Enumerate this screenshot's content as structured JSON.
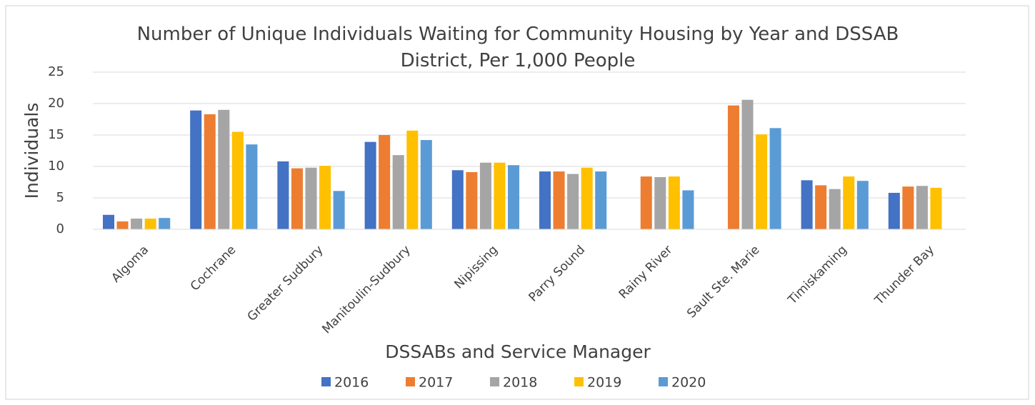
{
  "chart_data": {
    "type": "bar",
    "title": "Number of Unique Individuals Waiting for Community Housing by Year and DSSAB District, Per 1,000 People",
    "x_label": "DSSABs and Service Manager",
    "y_label": "Individuals",
    "categories": [
      "Algoma",
      "Cochrane",
      "Greater Sudbury",
      "Manitoulin-Sudbury",
      "Nipissing",
      "Parry Sound",
      "Rainy River",
      "Sault Ste. Marie",
      "Timiskaming",
      "Thunder Bay"
    ],
    "series": [
      {
        "name": "2016",
        "color": "#4472c4",
        "values": [
          2.3,
          18.9,
          10.8,
          13.9,
          9.4,
          9.2,
          null,
          null,
          7.8,
          5.8
        ]
      },
      {
        "name": "2017",
        "color": "#ed7d31",
        "values": [
          1.25,
          18.3,
          9.7,
          15.0,
          9.1,
          9.2,
          8.4,
          19.7,
          7.0,
          6.8
        ]
      },
      {
        "name": "2018",
        "color": "#a5a5a5",
        "values": [
          1.7,
          19.0,
          9.8,
          11.8,
          10.6,
          8.8,
          8.3,
          20.6,
          6.4,
          6.9
        ]
      },
      {
        "name": "2019",
        "color": "#ffc000",
        "values": [
          1.7,
          15.5,
          10.1,
          15.7,
          10.6,
          9.8,
          8.4,
          15.1,
          8.4,
          6.6
        ]
      },
      {
        "name": "2020",
        "color": "#5b9bd5",
        "values": [
          1.8,
          13.5,
          6.1,
          14.2,
          10.2,
          9.2,
          6.2,
          16.1,
          7.7,
          null
        ]
      }
    ],
    "ylim": [
      0,
      25
    ],
    "yticks": [
      0,
      5,
      10,
      15,
      20,
      25
    ],
    "grid": true,
    "legend": "bottom"
  }
}
